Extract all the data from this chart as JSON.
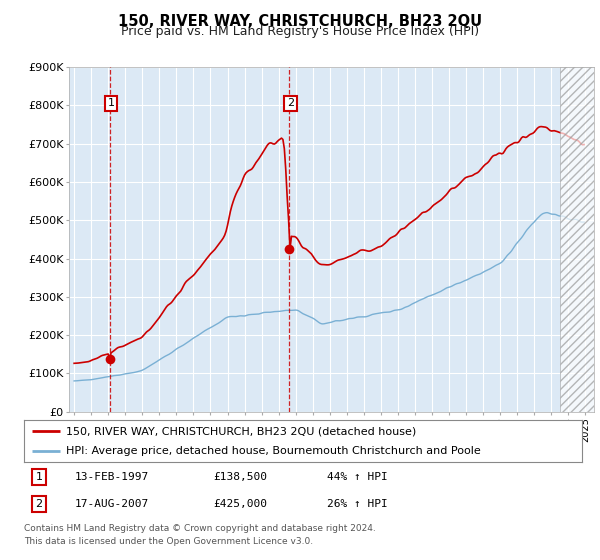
{
  "title": "150, RIVER WAY, CHRISTCHURCH, BH23 2QU",
  "subtitle": "Price paid vs. HM Land Registry's House Price Index (HPI)",
  "legend_line1": "150, RIVER WAY, CHRISTCHURCH, BH23 2QU (detached house)",
  "legend_line2": "HPI: Average price, detached house, Bournemouth Christchurch and Poole",
  "footer1": "Contains HM Land Registry data © Crown copyright and database right 2024.",
  "footer2": "This data is licensed under the Open Government Licence v3.0.",
  "sale1_label": "1",
  "sale1_date": "13-FEB-1997",
  "sale1_price": "£138,500",
  "sale1_hpi": "44% ↑ HPI",
  "sale2_label": "2",
  "sale2_date": "17-AUG-2007",
  "sale2_price": "£425,000",
  "sale2_hpi": "26% ↑ HPI",
  "sale1_year": 1997.12,
  "sale1_value": 138500,
  "sale2_year": 2007.63,
  "sale2_value": 425000,
  "ylim": [
    0,
    900000
  ],
  "xlim_start": 1994.7,
  "xlim_end": 2025.5,
  "red_color": "#cc0000",
  "blue_color": "#7ab0d4",
  "hatch_start": 2023.5,
  "plot_bg": "#dce9f5"
}
